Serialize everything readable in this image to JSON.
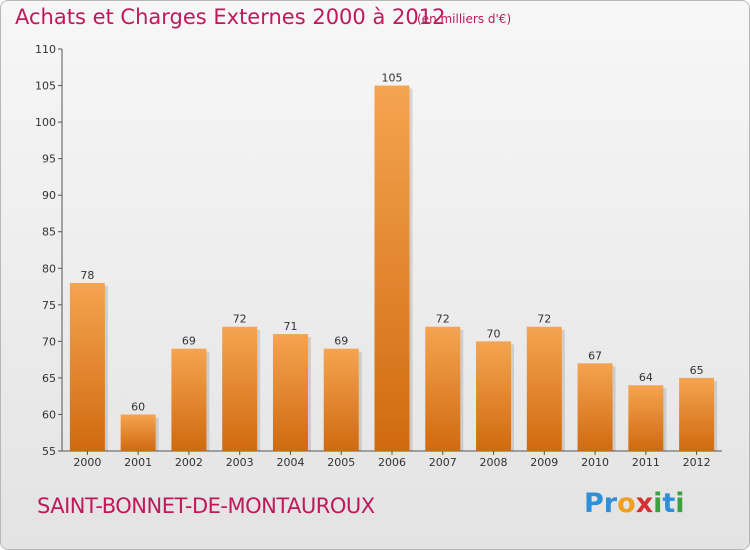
{
  "header": {
    "title": "Achats et Charges Externes 2000 à 2012",
    "subtitle": "(en milliers d'€)"
  },
  "footer": {
    "commune": "SAINT-BONNET-DE-MONTAUROUX",
    "logo_letters": [
      {
        "ch": "P",
        "color": "#2f8fd8"
      },
      {
        "ch": "r",
        "color": "#2f8fd8"
      },
      {
        "ch": "o",
        "color": "#f0a020"
      },
      {
        "ch": "x",
        "color": "#d83030"
      },
      {
        "ch": "i",
        "color": "#3aa040"
      },
      {
        "ch": "t",
        "color": "#2f8fd8"
      },
      {
        "ch": "i",
        "color": "#3aa040"
      }
    ]
  },
  "chart_data": {
    "type": "bar",
    "title": "Achats et Charges Externes 2000 à 2012",
    "subtitle": "(en milliers d'€)",
    "xlabel": "",
    "ylabel": "",
    "categories": [
      "2000",
      "2001",
      "2002",
      "2003",
      "2004",
      "2005",
      "2006",
      "2007",
      "2008",
      "2009",
      "2010",
      "2011",
      "2012"
    ],
    "values": [
      78,
      60,
      69,
      72,
      71,
      69,
      105,
      72,
      70,
      72,
      67,
      64,
      65
    ],
    "ylim": [
      55,
      110
    ],
    "yticks": [
      55,
      60,
      65,
      70,
      75,
      80,
      85,
      90,
      95,
      100,
      105,
      110
    ],
    "grid": false,
    "bar_color": "#f0902e",
    "bar_color_dark": "#d06a10"
  }
}
